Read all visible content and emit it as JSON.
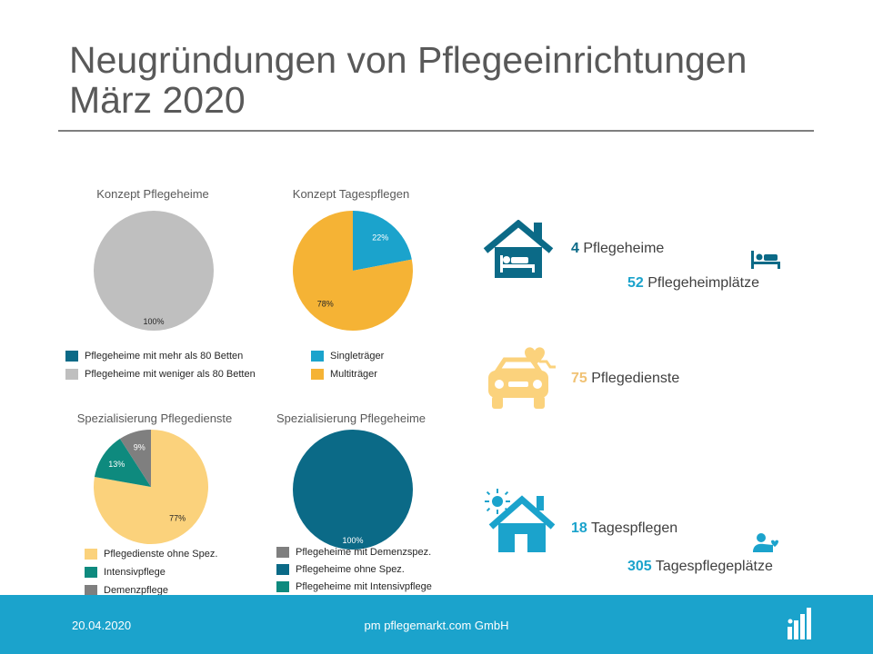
{
  "title": {
    "line1": "Neugründungen von Pflegeeinrichtungen",
    "line2": "März 2020"
  },
  "colors": {
    "dark_teal": "#0b6a87",
    "grey": "#bfbfbf",
    "blue": "#1ba3cc",
    "orange": "#f5b335",
    "light_orange": "#fbd27c",
    "green": "#0e8a7e",
    "dark_grey": "#7f7f7f",
    "highlight_orange": "#f0c274"
  },
  "chart_data": [
    {
      "type": "pie",
      "title": "Konzept Pflegeheime",
      "series": [
        {
          "name": "Pflegeheime mit mehr als 80 Betten",
          "value": 0,
          "color": "#0b6a87",
          "label": ""
        },
        {
          "name": "Pflegeheime mit weniger als 80 Betten",
          "value": 100,
          "color": "#bfbfbf",
          "label": "100%"
        }
      ]
    },
    {
      "type": "pie",
      "title": "Konzept Tagespflegen",
      "series": [
        {
          "name": "Singleträger",
          "value": 22,
          "color": "#1ba3cc",
          "label": "22%"
        },
        {
          "name": "Multiträger",
          "value": 78,
          "color": "#f5b335",
          "label": "78%"
        }
      ]
    },
    {
      "type": "pie",
      "title": "Spezialisierung Pflegedienste",
      "series": [
        {
          "name": "Pflegedienste ohne Spez.",
          "value": 77,
          "color": "#fbd27c",
          "label": "77%"
        },
        {
          "name": "Intensivpflege",
          "value": 13,
          "color": "#0e8a7e",
          "label": "13%"
        },
        {
          "name": "Demenzpflege",
          "value": 9,
          "color": "#7f7f7f",
          "label": "9%"
        }
      ]
    },
    {
      "type": "pie",
      "title": "Spezialisierung Pflegeheime",
      "series": [
        {
          "name": "Pflegeheime mit Demenzspez.",
          "value": 0,
          "color": "#7f7f7f",
          "label": ""
        },
        {
          "name": "Pflegeheime ohne Spez.",
          "value": 100,
          "color": "#0b6a87",
          "label": "100%"
        },
        {
          "name": "Pflegeheime mit Intensivpflege",
          "value": 0,
          "color": "#0e8a7e",
          "label": ""
        }
      ]
    }
  ],
  "stats": {
    "pflegeheime": {
      "value": "4",
      "label": "Pflegeheime",
      "color": "#0b6a87",
      "icon": "nursing-home-icon"
    },
    "pflegeheimplaetze": {
      "value": "52",
      "label": "Pflegeheimplätze",
      "color": "#1ba3cc",
      "icon": "bed-icon"
    },
    "pflegedienste": {
      "value": "75",
      "label": "Pflegedienste",
      "color": "#f0c274",
      "icon": "care-car-icon"
    },
    "tagespflegen": {
      "value": "18",
      "label": "Tagespflegen",
      "color": "#1ba3cc",
      "icon": "day-care-house-icon"
    },
    "tagespflegeplaetze": {
      "value": "305",
      "label": "Tagespflegeplätze",
      "color": "#1ba3cc",
      "icon": "reclining-person-icon"
    }
  },
  "footer": {
    "date": "20.04.2020",
    "company": "pm pflegemarkt.com GmbH",
    "logo_icon": "pflegemarkt-logo-icon"
  }
}
